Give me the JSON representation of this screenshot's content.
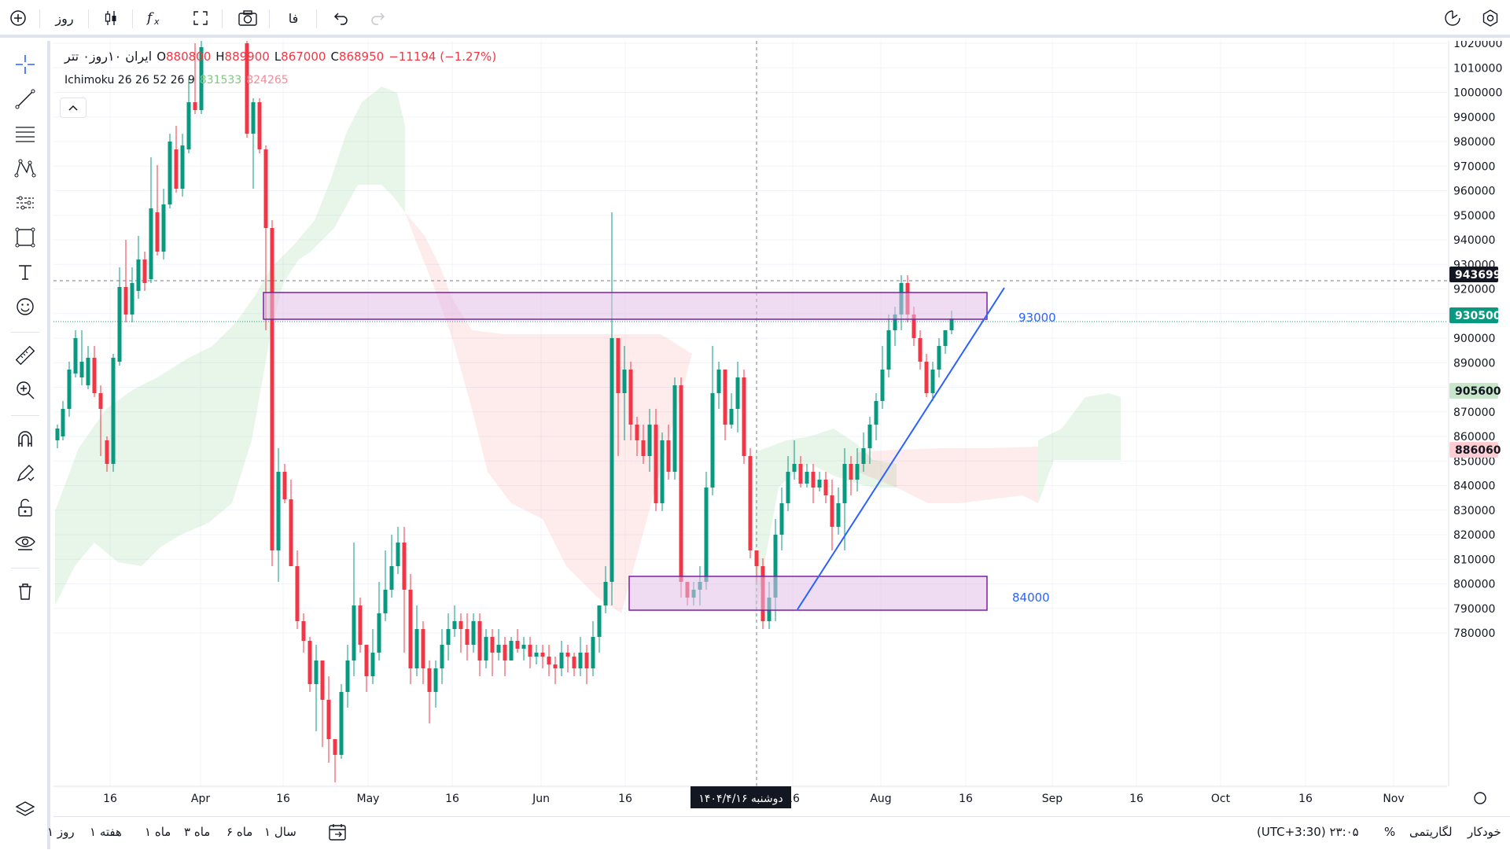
{
  "topbar": {
    "interval": "روز",
    "language": "فا",
    "icons": [
      "add-symbol-icon",
      "candles-icon",
      "indicators-icon",
      "templates-icon",
      "camera-icon",
      "undo-icon",
      "redo-icon",
      "replay-icon",
      "settings-icon"
    ]
  },
  "legend": {
    "symbol": "ایران ۱۰روز۰ تتر",
    "o_label": "O",
    "o_value": "880800",
    "h_label": "H",
    "h_value": "889900",
    "l_label": "L",
    "l_value": "867000",
    "c_label": "C",
    "c_value": "868950",
    "change": "−11194 (−1.27%)"
  },
  "indicator": {
    "name": "Ichimoku 26 26 52 26 9",
    "v1": "831533",
    "v2": "824265"
  },
  "price_axis": {
    "ticks": [
      "1020000",
      "1010000",
      "1000000",
      "990000",
      "980000",
      "970000",
      "960000",
      "950000",
      "940000",
      "930000",
      "920000",
      "910000",
      "900000",
      "890000",
      "880000",
      "870000",
      "860000",
      "850000",
      "840000",
      "830000",
      "820000",
      "810000",
      "800000",
      "790000",
      "780000"
    ],
    "badges": [
      {
        "value": "943699",
        "bg": "#131722"
      },
      {
        "value": "930500",
        "bg": "#089981"
      },
      {
        "value": "905600",
        "bg": "#c8e6c9"
      },
      {
        "value": "886060",
        "bg": "#ffcdd2"
      }
    ]
  },
  "time_axis": {
    "labels": [
      "16",
      "Apr",
      "16",
      "May",
      "16",
      "Jun",
      "16",
      "16",
      "Aug",
      "16",
      "Sep",
      "16",
      "Oct",
      "16",
      "Nov"
    ],
    "crosshair_date": "دوشنبه ۱۴۰۴/۴/۱۶"
  },
  "annotations": {
    "resistance_label": "93000",
    "support_label": "84000"
  },
  "bottombar": {
    "ranges": [
      "سال ۱",
      "ماه ۶",
      "ماه ۳",
      "ماه ۱",
      "هفته ۱",
      "روز ۱"
    ],
    "time": "(UTC+3:30) ۲۳:۰۵",
    "percent": "%",
    "log": "لگاریتمی",
    "auto": "خودکار"
  },
  "colors": {
    "up": "#089981",
    "down": "#f23645",
    "zone_fill": "#e1bee7",
    "zone_border": "#7b1fa2",
    "trendline": "#2962ff"
  }
}
